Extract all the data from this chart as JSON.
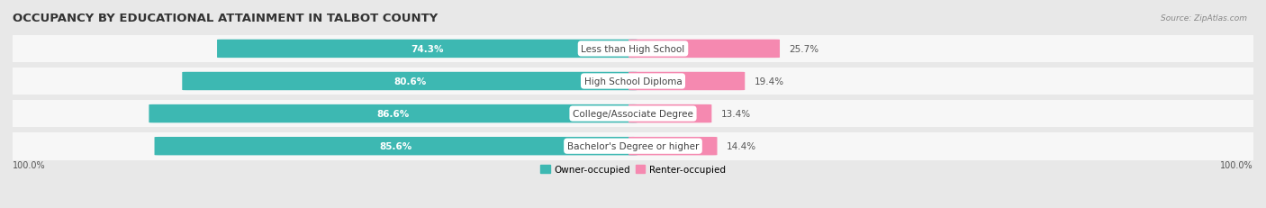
{
  "title": "OCCUPANCY BY EDUCATIONAL ATTAINMENT IN TALBOT COUNTY",
  "source": "Source: ZipAtlas.com",
  "categories": [
    "Less than High School",
    "High School Diploma",
    "College/Associate Degree",
    "Bachelor's Degree or higher"
  ],
  "owner_pct": [
    74.3,
    80.6,
    86.6,
    85.6
  ],
  "renter_pct": [
    25.7,
    19.4,
    13.4,
    14.4
  ],
  "owner_color": "#3db8b2",
  "renter_color": "#f589b0",
  "bg_color": "#e8e8e8",
  "bar_bg_color": "#f7f7f7",
  "row_bg_color": "#ececec",
  "title_fontsize": 9.5,
  "pct_fontsize": 7.5,
  "cat_fontsize": 7.5,
  "legend_fontsize": 7.5,
  "bar_height": 0.55,
  "legend_label_owner": "Owner-occupied",
  "legend_label_renter": "Renter-occupied",
  "left_label": "100.0%",
  "right_label": "100.0%"
}
